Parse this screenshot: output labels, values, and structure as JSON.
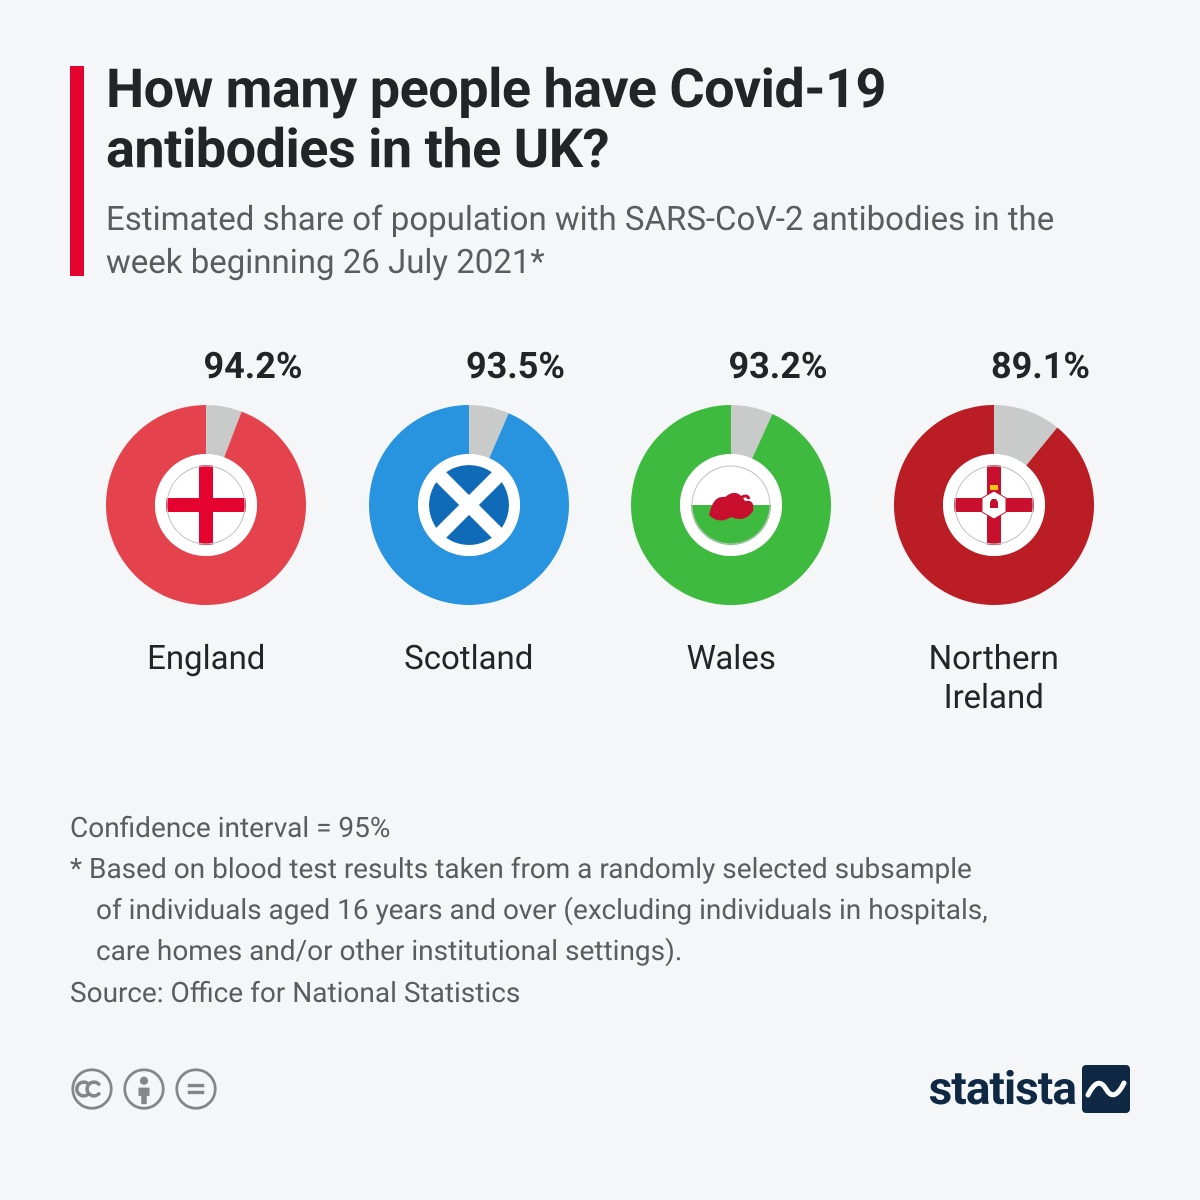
{
  "header": {
    "title": "How many people have Covid-19 antibodies in the UK?",
    "subtitle": "Estimated share of population with SARS-CoV-2 antibodies in the week beginning 26 July 2021*",
    "accent_color": "#e4032e"
  },
  "chart": {
    "type": "donut",
    "background_color": "#f4f6f8",
    "remainder_color": "#c9cbca",
    "donut_outer_radius": 100,
    "donut_inner_radius": 51,
    "flag_circle_radius": 40,
    "pct_fontsize": 36,
    "label_fontsize": 33,
    "regions": [
      {
        "name": "England",
        "value": 94.2,
        "color": "#e4434d",
        "flag": "england"
      },
      {
        "name": "Scotland",
        "value": 93.5,
        "color": "#2893df",
        "flag": "scotland"
      },
      {
        "name": "Wales",
        "value": 93.2,
        "color": "#3eba3e",
        "flag": "wales"
      },
      {
        "name": "Northern Ireland",
        "value": 89.1,
        "color": "#bb1d24",
        "flag": "northern-ireland"
      }
    ]
  },
  "notes": {
    "confidence": "Confidence interval = 95%",
    "asterisk_1": "* Based on blood test results taken from a randomly selected subsample",
    "asterisk_2": "of individuals aged 16 years and over (excluding individuals in hospitals,",
    "asterisk_3": "care homes and/or other institutional settings).",
    "source": "Source: Office for National Statistics"
  },
  "footer": {
    "brand": "statista",
    "brand_color": "#0f2944",
    "cc_color": "#848688"
  }
}
